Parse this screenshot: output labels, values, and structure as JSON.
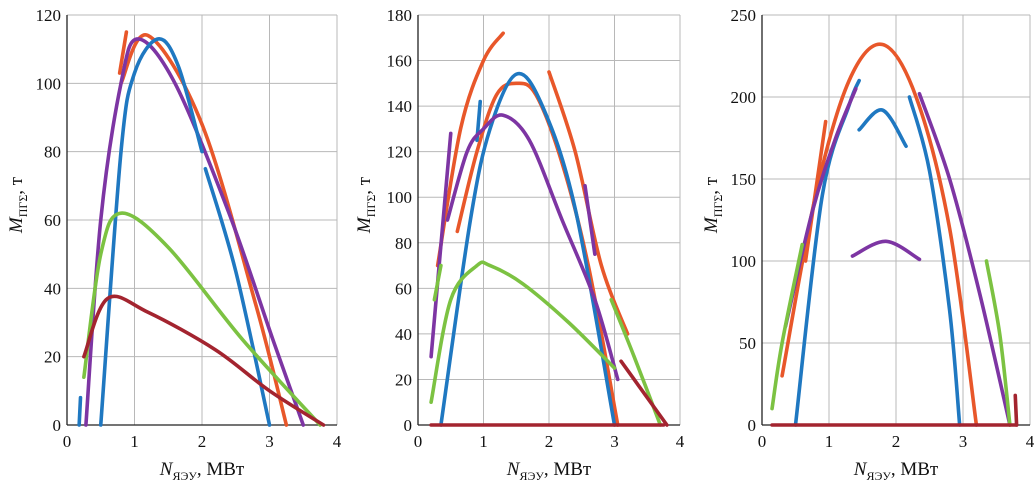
{
  "colors": {
    "blue": "#1f78c1",
    "orange": "#e8572a",
    "purple": "#7d35a3",
    "green": "#7cc242",
    "darkred": "#a3242f"
  },
  "chart_data": [
    {
      "type": "line",
      "xlabel": {
        "main": "N",
        "sub": "ЯЭУ",
        "unit": ", МВт"
      },
      "ylabel": {
        "main": "M",
        "sub": "ПГΣ",
        "unit": ", т"
      },
      "xlim": [
        0,
        4
      ],
      "ylim": [
        0,
        120
      ],
      "xticks": [
        "0",
        "1",
        "2",
        "3",
        "4"
      ],
      "yticks": [
        "0",
        "20",
        "40",
        "60",
        "80",
        "100",
        "120"
      ],
      "series": [
        {
          "name": "orange",
          "color": "orange",
          "x": [
            0.8,
            1.2,
            2.0,
            2.8,
            3.25
          ],
          "y": [
            100,
            114,
            88,
            35,
            0
          ]
        },
        {
          "name": "orange-top",
          "color": "orange",
          "x": [
            0.78,
            0.88
          ],
          "y": [
            103,
            115
          ]
        },
        {
          "name": "purple",
          "color": "purple",
          "x": [
            0.28,
            0.5,
            0.8,
            1.05,
            1.6,
            2.4,
            3.05,
            3.5
          ],
          "y": [
            0,
            60,
            100,
            113,
            100,
            62,
            25,
            0
          ]
        },
        {
          "name": "blue",
          "color": "blue",
          "x": [
            0.5,
            0.8,
            1.0,
            1.35,
            1.65,
            2.0
          ],
          "y": [
            0,
            80,
            103,
            113,
            105,
            80
          ]
        },
        {
          "name": "blue-low",
          "color": "blue",
          "x": [
            2.05,
            2.5,
            3.0
          ],
          "y": [
            75,
            45,
            0
          ]
        },
        {
          "name": "green",
          "color": "green",
          "x": [
            0.25,
            0.5,
            0.8,
            1.5,
            2.6,
            3.75
          ],
          "y": [
            14,
            50,
            62,
            52,
            25,
            0
          ]
        },
        {
          "name": "darkred",
          "color": "darkred",
          "x": [
            0.25,
            0.6,
            1.2,
            2.2,
            3.0,
            3.8
          ],
          "y": [
            20,
            37,
            33,
            22,
            10,
            0
          ]
        },
        {
          "name": "blue-stub",
          "color": "blue",
          "x": [
            0.18,
            0.2
          ],
          "y": [
            0,
            8
          ]
        }
      ]
    },
    {
      "type": "line",
      "xlabel": {
        "main": "N",
        "sub": "ЯЭУ",
        "unit": ", МВт"
      },
      "ylabel": {
        "main": "M",
        "sub": "ПГΣ",
        "unit": ", т"
      },
      "xlim": [
        0,
        4
      ],
      "ylim": [
        0,
        180
      ],
      "xticks": [
        "0",
        "1",
        "2",
        "3",
        "4"
      ],
      "yticks": [
        "0",
        "20",
        "40",
        "60",
        "80",
        "100",
        "120",
        "140",
        "160",
        "180"
      ],
      "series": [
        {
          "name": "orange-left",
          "color": "orange",
          "x": [
            0.3,
            0.65,
            1.0,
            1.3
          ],
          "y": [
            70,
            130,
            160,
            172
          ]
        },
        {
          "name": "orange-main",
          "color": "orange",
          "x": [
            0.6,
            0.9,
            1.2,
            1.5,
            1.8,
            2.2,
            2.6,
            3.05
          ],
          "y": [
            85,
            120,
            145,
            150,
            145,
            115,
            70,
            0
          ]
        },
        {
          "name": "orange-right",
          "color": "orange",
          "x": [
            2.0,
            2.4,
            2.8,
            3.2
          ],
          "y": [
            155,
            120,
            70,
            40
          ]
        },
        {
          "name": "blue",
          "color": "blue",
          "x": [
            0.35,
            0.8,
            1.1,
            1.5,
            1.9,
            2.4,
            3.0
          ],
          "y": [
            0,
            90,
            130,
            154,
            140,
            95,
            0
          ]
        },
        {
          "name": "blue-stub",
          "color": "blue",
          "x": [
            0.9,
            0.95
          ],
          "y": [
            125,
            142
          ]
        },
        {
          "name": "purple",
          "color": "purple",
          "x": [
            0.45,
            0.75,
            1.0,
            1.3,
            1.7,
            2.2,
            2.7,
            3.05
          ],
          "y": [
            90,
            120,
            130,
            136,
            125,
            90,
            55,
            20
          ]
        },
        {
          "name": "purple-left",
          "color": "purple",
          "x": [
            0.2,
            0.5
          ],
          "y": [
            30,
            128
          ]
        },
        {
          "name": "purple-right",
          "color": "purple",
          "x": [
            2.55,
            2.7
          ],
          "y": [
            105,
            75
          ]
        },
        {
          "name": "green",
          "color": "green",
          "x": [
            0.2,
            0.5,
            0.9,
            1.1,
            1.6,
            2.3,
            3.0
          ],
          "y": [
            10,
            55,
            70,
            70,
            62,
            45,
            25
          ]
        },
        {
          "name": "green-right",
          "color": "green",
          "x": [
            2.95,
            3.3,
            3.7
          ],
          "y": [
            55,
            30,
            0
          ]
        },
        {
          "name": "green-left",
          "color": "green",
          "x": [
            0.25,
            0.35
          ],
          "y": [
            55,
            70
          ]
        },
        {
          "name": "darkred",
          "color": "darkred",
          "x": [
            0.2,
            3.75
          ],
          "y": [
            0,
            0
          ]
        },
        {
          "name": "darkred-tail",
          "color": "darkred",
          "x": [
            3.1,
            3.8
          ],
          "y": [
            28,
            0
          ]
        }
      ]
    },
    {
      "type": "line",
      "xlabel": {
        "main": "N",
        "sub": "ЯЭУ",
        "unit": ", МВт"
      },
      "ylabel": {
        "main": "M",
        "sub": "ПГΣ",
        "unit": ", т"
      },
      "xlim": [
        0,
        4
      ],
      "ylim": [
        0,
        250
      ],
      "xticks": [
        "0",
        "1",
        "2",
        "3",
        "4"
      ],
      "yticks": [
        "0",
        "50",
        "100",
        "150",
        "200",
        "250"
      ],
      "series": [
        {
          "name": "orange",
          "color": "orange",
          "x": [
            0.3,
            0.8,
            1.3,
            1.8,
            2.3,
            2.8,
            3.2
          ],
          "y": [
            30,
            140,
            210,
            232,
            200,
            120,
            0
          ]
        },
        {
          "name": "orange-left",
          "color": "orange",
          "x": [
            0.65,
            0.95
          ],
          "y": [
            100,
            185
          ]
        },
        {
          "name": "blue",
          "color": "blue",
          "x": [
            0.5,
            0.9,
            1.3,
            1.45
          ],
          "y": [
            0,
            140,
            195,
            210
          ]
        },
        {
          "name": "blue-arch",
          "color": "blue",
          "x": [
            1.45,
            1.8,
            2.15
          ],
          "y": [
            180,
            192,
            170
          ]
        },
        {
          "name": "blue-right",
          "color": "blue",
          "x": [
            2.2,
            2.5,
            2.8,
            2.95
          ],
          "y": [
            200,
            155,
            70,
            0
          ]
        },
        {
          "name": "purple",
          "color": "purple",
          "x": [
            0.35,
            0.75,
            1.1,
            1.4
          ],
          "y": [
            60,
            130,
            175,
            205
          ]
        },
        {
          "name": "purple-arch",
          "color": "purple",
          "x": [
            1.35,
            1.85,
            2.35
          ],
          "y": [
            103,
            112,
            101
          ]
        },
        {
          "name": "purple-right",
          "color": "purple",
          "x": [
            2.35,
            2.8,
            3.25,
            3.7
          ],
          "y": [
            202,
            150,
            80,
            0
          ]
        },
        {
          "name": "green-left",
          "color": "green",
          "x": [
            0.15,
            0.3,
            0.6
          ],
          "y": [
            10,
            50,
            110
          ]
        },
        {
          "name": "green-right",
          "color": "green",
          "x": [
            3.35,
            3.55,
            3.7
          ],
          "y": [
            100,
            55,
            0
          ]
        },
        {
          "name": "darkred",
          "color": "darkred",
          "x": [
            0.15,
            3.8
          ],
          "y": [
            0,
            0
          ]
        },
        {
          "name": "darkred-stub",
          "color": "darkred",
          "x": [
            3.78,
            3.8
          ],
          "y": [
            18,
            0
          ]
        }
      ]
    }
  ]
}
